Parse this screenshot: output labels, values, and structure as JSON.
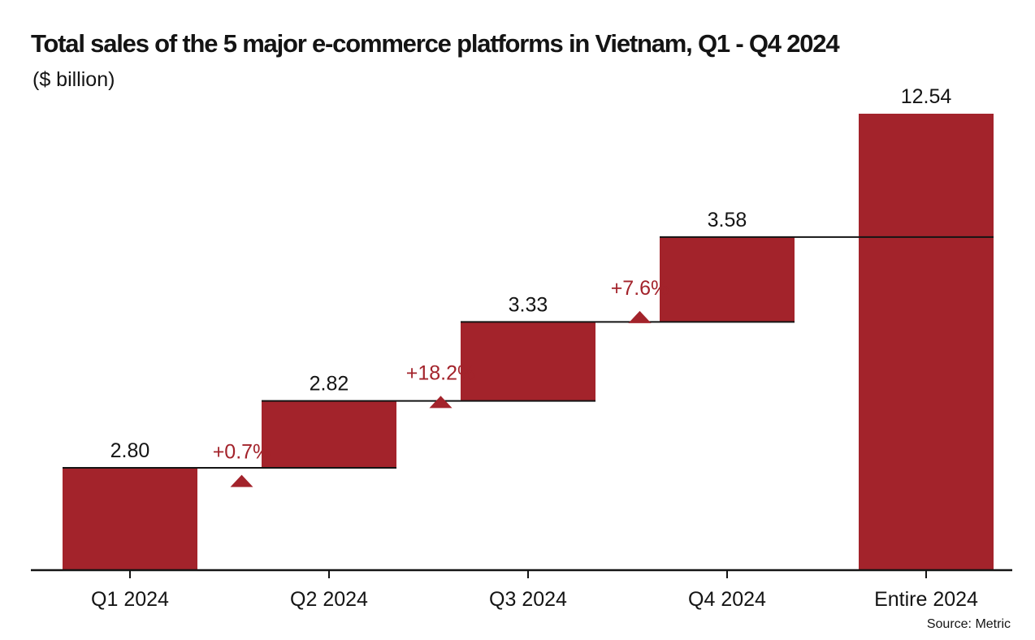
{
  "title": "Total sales of the 5 major e-commerce platforms in Vietnam, Q1 - Q4 2024",
  "subtitle": "($ billion)",
  "source": "Source: Metric",
  "colors": {
    "bar": "#a3232b",
    "text": "#141414",
    "accent": "#a3232b"
  },
  "chart_data": {
    "type": "bar",
    "subtype": "waterfall",
    "categories": [
      "Q1 2024",
      "Q2 2024",
      "Q3 2024",
      "Q4 2024",
      "Entire 2024"
    ],
    "values": [
      2.8,
      2.82,
      3.33,
      3.58,
      12.54
    ],
    "value_labels": [
      "2.80",
      "2.82",
      "3.33",
      "3.58",
      "12.54"
    ],
    "changes": [
      "+0.7%",
      "+18.2%",
      "+7.6%"
    ],
    "total_category": "Entire 2024",
    "grid": false,
    "legend": "none"
  }
}
